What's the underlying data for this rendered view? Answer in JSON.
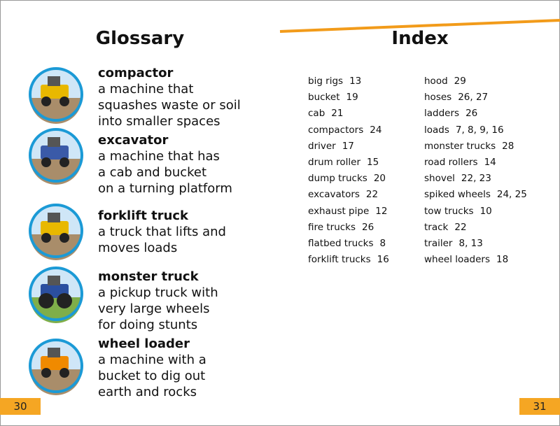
{
  "glossary": {
    "title": "Glossary",
    "entries": [
      {
        "term": "compactor",
        "lines": [
          "a machine that",
          "squashes waste or soil",
          "into smaller spaces"
        ]
      },
      {
        "term": "excavator",
        "lines": [
          "a machine that has",
          "a cab and bucket",
          "on a turning platform"
        ]
      },
      {
        "term": "forklift truck",
        "lines": [
          "a truck that lifts and",
          "moves loads"
        ]
      },
      {
        "term": "monster truck",
        "lines": [
          "a pickup truck with",
          "very large wheels",
          "for doing stunts"
        ]
      },
      {
        "term": "wheel loader",
        "lines": [
          "a machine with a",
          "bucket to dig out",
          "earth and rocks"
        ]
      }
    ]
  },
  "index": {
    "title": "Index",
    "columns": [
      [
        {
          "term": "big rigs",
          "pages": "13"
        },
        {
          "term": "bucket",
          "pages": "19"
        },
        {
          "term": "cab",
          "pages": "21"
        },
        {
          "term": "compactors",
          "pages": "24"
        },
        {
          "term": "driver",
          "pages": "17"
        },
        {
          "term": "drum roller",
          "pages": "15"
        },
        {
          "term": "dump trucks",
          "pages": "20"
        },
        {
          "term": "excavators",
          "pages": "22"
        },
        {
          "term": "exhaust pipe",
          "pages": "12"
        },
        {
          "term": "fire trucks",
          "pages": "26"
        },
        {
          "term": "flatbed trucks",
          "pages": "8"
        },
        {
          "term": "forklift trucks",
          "pages": "16"
        }
      ],
      [
        {
          "term": "hood",
          "pages": "29"
        },
        {
          "term": "hoses",
          "pages": "26, 27"
        },
        {
          "term": "ladders",
          "pages": "26"
        },
        {
          "term": "loads",
          "pages": "7, 8, 9, 16"
        },
        {
          "term": "monster trucks",
          "pages": "28"
        },
        {
          "term": "road rollers",
          "pages": "14"
        },
        {
          "term": "shovel",
          "pages": "22, 23"
        },
        {
          "term": "spiked wheels",
          "pages": "24, 25"
        },
        {
          "term": "tow trucks",
          "pages": "10"
        },
        {
          "term": "track",
          "pages": "22"
        },
        {
          "term": "trailer",
          "pages": "8, 13"
        },
        {
          "term": "wheel loaders",
          "pages": "18"
        }
      ]
    ]
  },
  "page_numbers": {
    "left": "30",
    "right": "31"
  }
}
